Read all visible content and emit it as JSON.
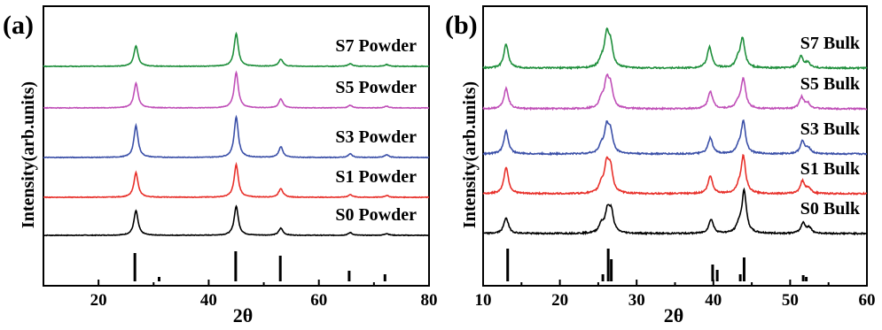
{
  "chart_data": [
    {
      "panel_label": "(a)",
      "type": "line",
      "xlabel": "2θ",
      "ylabel": "Intensity(arb.units)",
      "xlim": [
        10,
        80
      ],
      "xticks": [
        "20",
        "40",
        "60",
        "80"
      ],
      "grid": false,
      "series": [
        {
          "name": "S0 Powder",
          "color": "#000000",
          "baseline": 1,
          "peaks": [
            [
              26.8,
              28
            ],
            [
              45.0,
              33
            ],
            [
              53.1,
              8
            ],
            [
              65.7,
              3
            ],
            [
              72.3,
              2
            ]
          ]
        },
        {
          "name": "S1 Powder",
          "color": "#e8302a",
          "baseline": 2,
          "peaks": [
            [
              26.8,
              28
            ],
            [
              45.0,
              37
            ],
            [
              53.1,
              10
            ],
            [
              65.7,
              3
            ],
            [
              72.3,
              2
            ]
          ]
        },
        {
          "name": "S3 Powder",
          "color": "#3b50a8",
          "baseline": 3,
          "peaks": [
            [
              26.8,
              36
            ],
            [
              45.0,
              46
            ],
            [
              53.1,
              12
            ],
            [
              65.7,
              4
            ],
            [
              72.3,
              3
            ]
          ]
        },
        {
          "name": "S5 Powder",
          "color": "#c050b8",
          "baseline": 4,
          "peaks": [
            [
              26.8,
              28
            ],
            [
              45.0,
              40
            ],
            [
              53.1,
              10
            ],
            [
              65.7,
              3
            ],
            [
              72.3,
              2
            ]
          ]
        },
        {
          "name": "S7 Powder",
          "color": "#1f8f3c",
          "baseline": 5,
          "peaks": [
            [
              26.8,
              23
            ],
            [
              45.0,
              37
            ],
            [
              53.1,
              8
            ],
            [
              65.7,
              3
            ],
            [
              72.3,
              2
            ]
          ]
        }
      ],
      "reference_sticks": [
        [
          26.6,
          32
        ],
        [
          31.0,
          5
        ],
        [
          44.9,
          34
        ],
        [
          53.0,
          29
        ],
        [
          65.5,
          12
        ],
        [
          72.0,
          8
        ]
      ]
    },
    {
      "panel_label": "(b)",
      "type": "line",
      "xlabel": "2θ",
      "ylabel": "Intensity(arb.units)",
      "xlim": [
        10,
        60
      ],
      "xticks": [
        "10",
        "20",
        "30",
        "40",
        "50",
        "60"
      ],
      "grid": false,
      "series": [
        {
          "name": "S0 Bulk",
          "color": "#000000",
          "baseline": 1,
          "peaks": [
            [
              13.0,
              18
            ],
            [
              25.4,
              10
            ],
            [
              26.2,
              24
            ],
            [
              26.7,
              22
            ],
            [
              39.7,
              16
            ],
            [
              43.3,
              8
            ],
            [
              44.0,
              48
            ],
            [
              51.7,
              12
            ],
            [
              52.5,
              6
            ]
          ]
        },
        {
          "name": "S1 Bulk",
          "color": "#e8302a",
          "baseline": 2,
          "peaks": [
            [
              13.0,
              30
            ],
            [
              25.4,
              10
            ],
            [
              26.1,
              31
            ],
            [
              26.6,
              26
            ],
            [
              39.6,
              20
            ],
            [
              43.3,
              6
            ],
            [
              43.9,
              42
            ],
            [
              51.6,
              14
            ],
            [
              52.4,
              6
            ]
          ]
        },
        {
          "name": "S3 Bulk",
          "color": "#3b50a8",
          "baseline": 3,
          "peaks": [
            [
              13.0,
              26
            ],
            [
              25.4,
              8
            ],
            [
              26.1,
              28
            ],
            [
              26.6,
              22
            ],
            [
              39.6,
              18
            ],
            [
              43.3,
              6
            ],
            [
              43.9,
              36
            ],
            [
              51.6,
              14
            ],
            [
              52.4,
              6
            ]
          ]
        },
        {
          "name": "S5 Bulk",
          "color": "#c050b8",
          "baseline": 4,
          "peaks": [
            [
              13.0,
              23
            ],
            [
              25.4,
              10
            ],
            [
              26.1,
              29
            ],
            [
              26.6,
              23
            ],
            [
              39.6,
              20
            ],
            [
              43.2,
              6
            ],
            [
              43.9,
              34
            ],
            [
              51.5,
              13
            ],
            [
              52.3,
              6
            ]
          ]
        },
        {
          "name": "S7 Bulk",
          "color": "#1f8f3c",
          "baseline": 5,
          "peaks": [
            [
              13.0,
              27
            ],
            [
              25.4,
              8
            ],
            [
              26.1,
              35
            ],
            [
              26.6,
              24
            ],
            [
              39.5,
              24
            ],
            [
              43.2,
              8
            ],
            [
              43.8,
              33
            ],
            [
              51.4,
              13
            ],
            [
              52.3,
              6
            ]
          ]
        }
      ],
      "reference_sticks": [
        [
          13.2,
          37
        ],
        [
          25.6,
          8
        ],
        [
          26.3,
          37
        ],
        [
          26.7,
          25
        ],
        [
          39.9,
          19
        ],
        [
          40.5,
          13
        ],
        [
          43.5,
          8
        ],
        [
          44.0,
          27
        ],
        [
          51.7,
          7
        ],
        [
          52.1,
          5
        ]
      ]
    }
  ]
}
